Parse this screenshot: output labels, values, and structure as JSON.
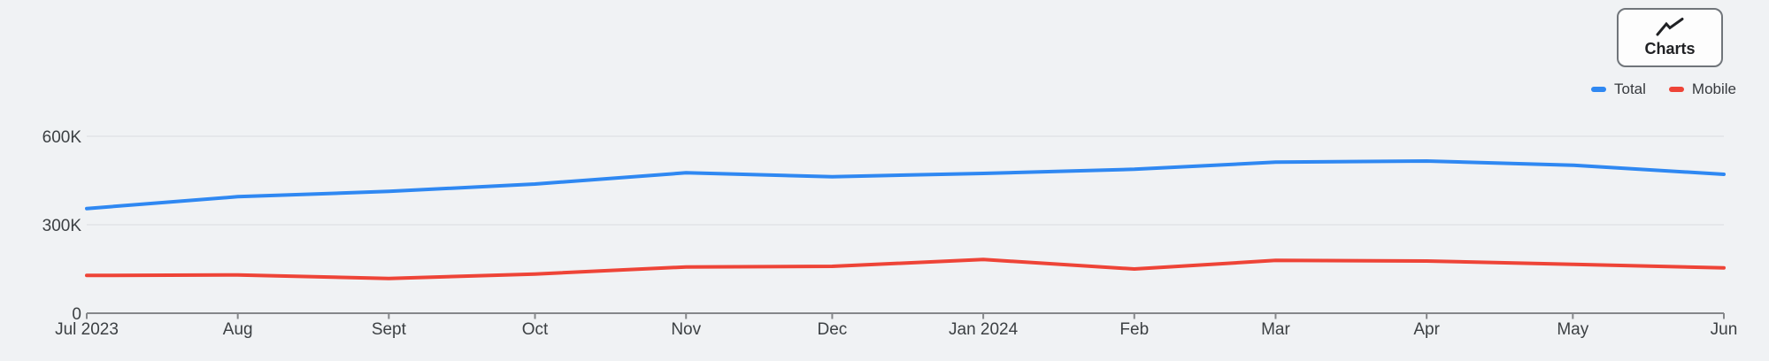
{
  "toolbar": {
    "charts_button_label": "Charts",
    "charts_button_icon": "trend-line-icon"
  },
  "legend": {
    "position": "top-right",
    "items": [
      {
        "label": "Total",
        "color": "#2f88f2"
      },
      {
        "label": "Mobile",
        "color": "#ee4437"
      }
    ]
  },
  "colors": {
    "background": "#f0f2f4",
    "gridline": "#e1e3e6",
    "axis": "#85878a",
    "tick_label": "#3c4043",
    "total_line": "#2f88f2",
    "mobile_line": "#ee4437"
  },
  "chart_data": {
    "type": "line",
    "title": "",
    "xlabel": "",
    "ylabel": "",
    "x": [
      "Jul 2023",
      "Aug",
      "Sept",
      "Oct",
      "Nov",
      "Dec",
      "Jan 2024",
      "Feb",
      "Mar",
      "Apr",
      "May",
      "Jun"
    ],
    "x_day_offsets": [
      0,
      31,
      62,
      92,
      123,
      153,
      184,
      215,
      244,
      275,
      305,
      336
    ],
    "series": [
      {
        "name": "Total",
        "color": "#2f88f2",
        "values": [
          355000,
          395000,
          413000,
          438000,
          476000,
          463000,
          474000,
          488000,
          512000,
          516000,
          502000,
          471000
        ]
      },
      {
        "name": "Mobile",
        "color": "#ee4437",
        "values": [
          128000,
          130000,
          118000,
          133000,
          157000,
          159000,
          182000,
          150000,
          179000,
          177000,
          166000,
          154000
        ]
      }
    ],
    "ytick_labels": [
      "0",
      "300K",
      "600K"
    ],
    "ytick_values": [
      0,
      300000,
      600000
    ],
    "ylim": [
      0,
      660000
    ],
    "grid": "horizontal",
    "legend_position": "top-right"
  }
}
